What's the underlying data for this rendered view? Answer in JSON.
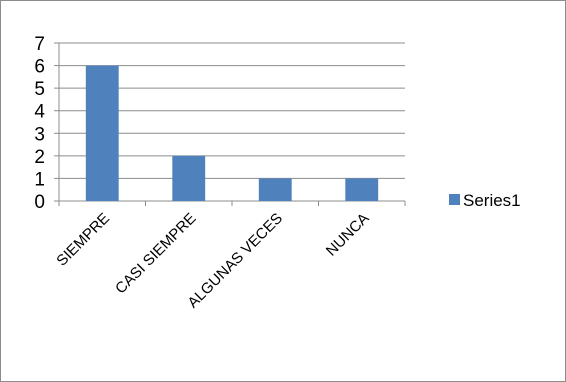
{
  "chart_data": {
    "type": "bar",
    "categories": [
      "SIEMPRE",
      "CASI SIEMPRE",
      "ALGUNAS VECES",
      "NUNCA"
    ],
    "series": [
      {
        "name": "Series1",
        "values": [
          6,
          2,
          1,
          1
        ],
        "color": "#4f81bd"
      }
    ],
    "ylim": [
      0,
      7
    ],
    "y_ticks": [
      "0",
      "1",
      "2",
      "3",
      "4",
      "5",
      "6",
      "7"
    ],
    "grid": true,
    "legend_position": "right"
  }
}
